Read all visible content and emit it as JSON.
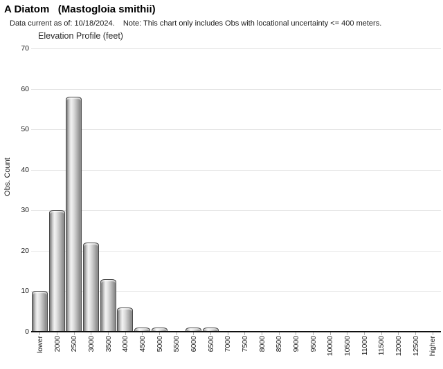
{
  "header": {
    "title": "A Diatom   (Mastogloia smithii)",
    "subtitle": "Data current as of: 10/18/2024.    Note: This chart only includes Obs with locational uncertainty <= 400 meters."
  },
  "chart_data": {
    "type": "bar",
    "title": "Elevation Profile (feet)",
    "xlabel": "",
    "ylabel": "Obs. Count",
    "ylim": [
      0,
      70
    ],
    "ytick_interval": 10,
    "grid": true,
    "legend": false,
    "categories": [
      "lower",
      "2000",
      "2500",
      "3000",
      "3500",
      "4000",
      "4500",
      "5000",
      "5500",
      "6000",
      "6500",
      "7000",
      "7500",
      "8000",
      "8500",
      "9000",
      "9500",
      "10000",
      "10500",
      "11000",
      "11500",
      "12000",
      "12500",
      "higher"
    ],
    "values": [
      10,
      30,
      58,
      22,
      13,
      6,
      1,
      1,
      0,
      1,
      1,
      0,
      0,
      0,
      0,
      0,
      0,
      0,
      0,
      0,
      0,
      0,
      0,
      0
    ],
    "colors": {
      "bar_gradient": [
        "#6f6f6f",
        "#c9c9c9",
        "#f2f2f2",
        "#e0e0e0",
        "#b5b5b5",
        "#7f7f7f"
      ],
      "bar_border": "#4a4a4a",
      "gridline": "#e5e5e5",
      "axis": "#111111",
      "text": "#1a1a1a"
    }
  }
}
